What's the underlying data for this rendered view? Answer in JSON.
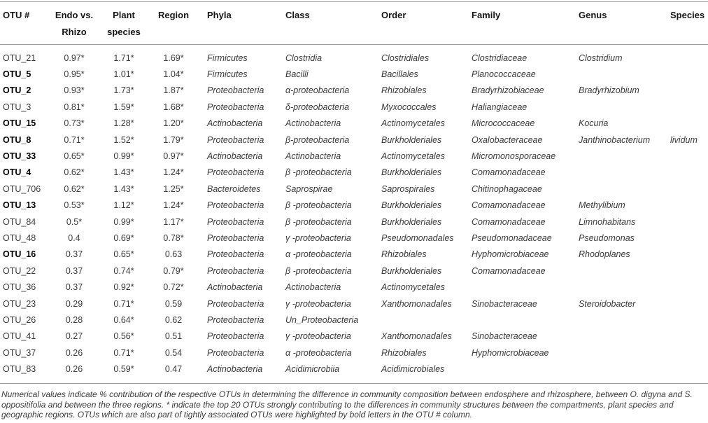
{
  "table": {
    "columns": [
      {
        "key": "otu",
        "label": "OTU #"
      },
      {
        "key": "endo_vs_rhizo",
        "label": "Endo vs. Rhizo",
        "label_lines": [
          "Endo vs.",
          "Rhizo"
        ]
      },
      {
        "key": "plant_species",
        "label": "Plant species",
        "label_lines": [
          "Plant",
          "species"
        ]
      },
      {
        "key": "region",
        "label": "Region"
      },
      {
        "key": "phyla",
        "label": "Phyla"
      },
      {
        "key": "class",
        "label": "Class"
      },
      {
        "key": "order",
        "label": "Order"
      },
      {
        "key": "family",
        "label": "Family"
      },
      {
        "key": "genus",
        "label": "Genus"
      },
      {
        "key": "species",
        "label": "Species"
      }
    ],
    "rows": [
      {
        "otu": "OTU_21",
        "bold": false,
        "endo_vs_rhizo": "0.97*",
        "plant_species": "1.71*",
        "region": "1.69*",
        "phyla": "Firmicutes",
        "class": "Clostridia",
        "order": "Clostridiales",
        "family": "Clostridiaceae",
        "genus": "Clostridium",
        "species": ""
      },
      {
        "otu": "OTU_5",
        "bold": true,
        "endo_vs_rhizo": "0.95*",
        "plant_species": "1.01*",
        "region": "1.04*",
        "phyla": "Firmicutes",
        "class": "Bacilli",
        "order": "Bacillales",
        "family": "Planococcaceae",
        "genus": "",
        "species": ""
      },
      {
        "otu": "OTU_2",
        "bold": true,
        "endo_vs_rhizo": "0.93*",
        "plant_species": "1.73*",
        "region": "1.87*",
        "phyla": "Proteobacteria",
        "class": "α-proteobacteria",
        "order": "Rhizobiales",
        "family": "Bradyrhizobiaceae",
        "genus": "Bradyrhizobium",
        "species": ""
      },
      {
        "otu": "OTU_3",
        "bold": false,
        "endo_vs_rhizo": "0.81*",
        "plant_species": "1.59*",
        "region": "1.68*",
        "phyla": "Proteobacteria",
        "class": "δ-proteobacteria",
        "order": "Myxococcales",
        "family": "Haliangiaceae",
        "genus": "",
        "species": ""
      },
      {
        "otu": "OTU_15",
        "bold": true,
        "endo_vs_rhizo": "0.73*",
        "plant_species": "1.28*",
        "region": "1.20*",
        "phyla": "Actinobacteria",
        "class": "Actinobacteria",
        "order": "Actinomycetales",
        "family": "Micrococcaceae",
        "genus": "Kocuria",
        "species": ""
      },
      {
        "otu": "OTU_8",
        "bold": true,
        "endo_vs_rhizo": "0.71*",
        "plant_species": "1.52*",
        "region": "1.79*",
        "phyla": "Proteobacteria",
        "class": "β-proteobacteria",
        "order": "Burkholderiales",
        "family": "Oxalobacteraceae",
        "genus": "Janthinobacterium",
        "species": "lividum"
      },
      {
        "otu": "OTU_33",
        "bold": true,
        "endo_vs_rhizo": "0.65*",
        "plant_species": "0.99*",
        "region": "0.97*",
        "phyla": "Actinobacteria",
        "class": "Actinobacteria",
        "order": "Actinomycetales",
        "family": "Micromonosporaceae",
        "genus": "",
        "species": ""
      },
      {
        "otu": "OTU_4",
        "bold": true,
        "endo_vs_rhizo": "0.62*",
        "plant_species": "1.43*",
        "region": "1.24*",
        "phyla": "Proteobacteria",
        "class": "β -proteobacteria",
        "order": "Burkholderiales",
        "family": "Comamonadaceae",
        "genus": "",
        "species": ""
      },
      {
        "otu": "OTU_706",
        "bold": false,
        "endo_vs_rhizo": "0.62*",
        "plant_species": "1.43*",
        "region": "1.25*",
        "phyla": "Bacteroidetes",
        "class": "Saprospirae",
        "order": "Saprospirales",
        "family": "Chitinophagaceae",
        "genus": "",
        "species": ""
      },
      {
        "otu": "OTU_13",
        "bold": true,
        "endo_vs_rhizo": "0.53*",
        "plant_species": "1.12*",
        "region": "1.24*",
        "phyla": "Proteobacteria",
        "class": "β -proteobacteria",
        "order": "Burkholderiales",
        "family": "Comamonadaceae",
        "genus": "Methylibium",
        "species": ""
      },
      {
        "otu": "OTU_84",
        "bold": false,
        "endo_vs_rhizo": "0.5*",
        "plant_species": "0.99*",
        "region": "1.17*",
        "phyla": "Proteobacteria",
        "class": "β -proteobacteria",
        "order": "Burkholderiales",
        "family": "Comamonadaceae",
        "genus": "Limnohabitans",
        "species": ""
      },
      {
        "otu": "OTU_48",
        "bold": false,
        "endo_vs_rhizo": "0.4",
        "plant_species": "0.69*",
        "region": "0.78*",
        "phyla": "Proteobacteria",
        "class": "γ -proteobacteria",
        "order": "Pseudomonadales",
        "family": "Pseudomonadaceae",
        "genus": "Pseudomonas",
        "species": ""
      },
      {
        "otu": "OTU_16",
        "bold": true,
        "endo_vs_rhizo": "0.37",
        "plant_species": "0.65*",
        "region": "0.63",
        "phyla": "Proteobacteria",
        "class": "α -proteobacteria",
        "order": "Rhizobiales",
        "family": "Hyphomicrobiaceae",
        "genus": "Rhodoplanes",
        "species": ""
      },
      {
        "otu": "OTU_22",
        "bold": false,
        "endo_vs_rhizo": "0.37",
        "plant_species": "0.74*",
        "region": "0.79*",
        "phyla": "Proteobacteria",
        "class": "β -proteobacteria",
        "order": "Burkholderiales",
        "family": "Comamonadaceae",
        "genus": "",
        "species": ""
      },
      {
        "otu": "OTU_36",
        "bold": false,
        "endo_vs_rhizo": "0.37",
        "plant_species": "0.92*",
        "region": "0.72*",
        "phyla": "Actinobacteria",
        "class": "Actinobacteria",
        "order": "Actinomycetales",
        "family": "",
        "genus": "",
        "species": ""
      },
      {
        "otu": "OTU_23",
        "bold": false,
        "endo_vs_rhizo": "0.29",
        "plant_species": "0.71*",
        "region": "0.59",
        "phyla": "Proteobacteria",
        "class": "γ -proteobacteria",
        "order": "Xanthomonadales",
        "family": "Sinobacteraceae",
        "genus": "Steroidobacter",
        "species": ""
      },
      {
        "otu": "OTU_26",
        "bold": false,
        "endo_vs_rhizo": "0.28",
        "plant_species": "0.64*",
        "region": "0.62",
        "phyla": "Proteobacteria",
        "class": "Un_Proteobacteria",
        "order": "",
        "family": "",
        "genus": "",
        "species": ""
      },
      {
        "otu": "OTU_41",
        "bold": false,
        "endo_vs_rhizo": "0.27",
        "plant_species": "0.56*",
        "region": "0.51",
        "phyla": "Proteobacteria",
        "class": "γ -proteobacteria",
        "order": "Xanthomonadales",
        "family": "Sinobacteraceae",
        "genus": "",
        "species": ""
      },
      {
        "otu": "OTU_37",
        "bold": false,
        "endo_vs_rhizo": "0.26",
        "plant_species": "0.71*",
        "region": "0.54",
        "phyla": "Proteobacteria",
        "class": "α -proteobacteria",
        "order": "Rhizobiales",
        "family": "Hyphomicrobiaceae",
        "genus": "",
        "species": ""
      },
      {
        "otu": "OTU_83",
        "bold": false,
        "endo_vs_rhizo": "0.26",
        "plant_species": "0.59*",
        "region": "0.47",
        "phyla": "Actinobacteria",
        "class": "Acidimicrobiia",
        "order": "Acidimicrobiales",
        "family": "",
        "genus": "",
        "species": ""
      }
    ]
  },
  "footnote": "Numerical values indicate % contribution of the respective OTUs in determining the difference in community composition between endosphere and rhizosphere, between O. digyna and S. oppositifolia and between the three regions. * indicate the top 20 OTUs strongly contributing to the differences in community structures between the compartments, plant species and geographic regions. OTUs which are also part of tightly associated OTUs were highlighted by bold letters in the OTU # column."
}
